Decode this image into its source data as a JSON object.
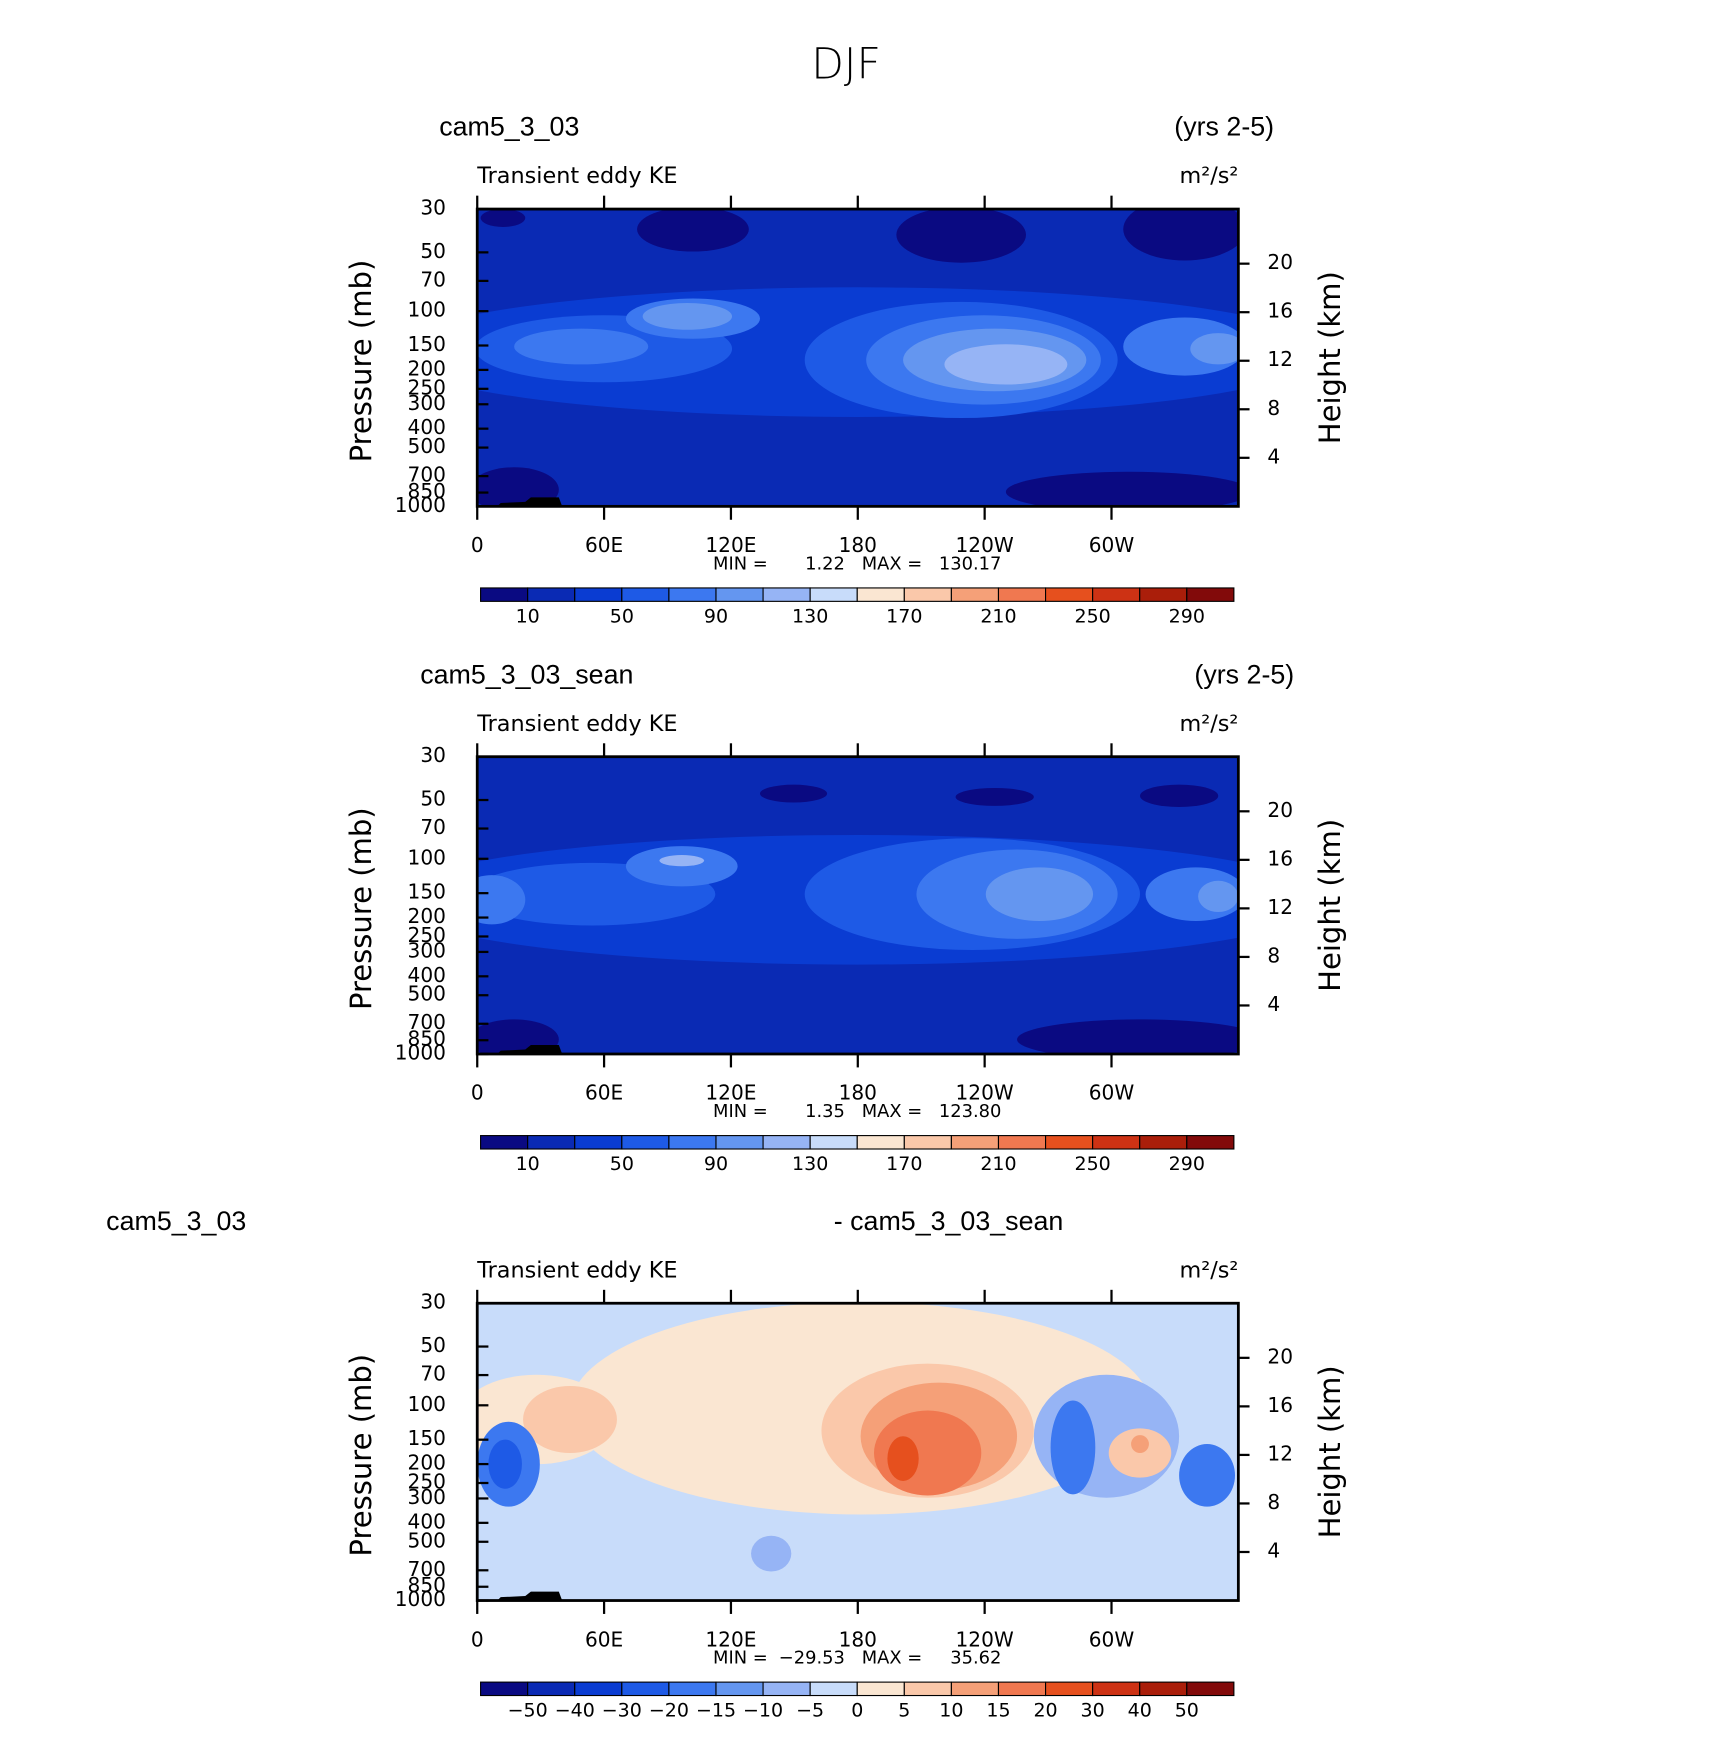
{
  "title": "DJF",
  "chart_data": [
    {
      "type": "contour",
      "title_left": "cam5_3_03",
      "title_right": "(yrs 2-5)",
      "subtitle": "Transient eddy KE",
      "units": "m²/s²",
      "ylabel": "Pressure (mb)",
      "y2label": "Height (km)",
      "log_y": true,
      "ylim": [
        1000,
        30
      ],
      "yticks": [
        30,
        50,
        70,
        100,
        150,
        200,
        250,
        300,
        400,
        500,
        700,
        850,
        1000
      ],
      "y2lim": [
        0,
        24.5
      ],
      "y2ticks": [
        4,
        8,
        12,
        16,
        20
      ],
      "xlim": [
        0,
        360
      ],
      "xticks": [
        0,
        {
          "value": 60,
          "label": "60E"
        },
        {
          "value": 120,
          "label": "120E"
        },
        180,
        {
          "value": 240,
          "label": "120W"
        },
        {
          "value": 300,
          "label": "60W"
        }
      ],
      "min_text": "MIN =",
      "min": 1.22,
      "max_text": "MAX =",
      "max": 130.17,
      "colorbar": {
        "ticks": [
          10,
          50,
          90,
          130,
          170,
          210,
          250,
          290
        ],
        "colors": [
          "#0a0a82",
          "#0a2ab4",
          "#0a3cd2",
          "#1e5ae6",
          "#3c78f0",
          "#6496f0",
          "#96b4f5",
          "#c8dcfa",
          "#fae6d2",
          "#fac8aa",
          "#f5a078",
          "#f07850",
          "#e6501e",
          "#cd3214",
          "#aa1e0a",
          "#820a0a"
        ]
      }
    },
    {
      "type": "contour",
      "title_left": "cam5_3_03_sean",
      "title_right": "(yrs 2-5)",
      "subtitle": "Transient eddy KE",
      "units": "m²/s²",
      "ylabel": "Pressure (mb)",
      "y2label": "Height (km)",
      "log_y": true,
      "ylim": [
        1000,
        30
      ],
      "yticks": [
        30,
        50,
        70,
        100,
        150,
        200,
        250,
        300,
        400,
        500,
        700,
        850,
        1000
      ],
      "y2lim": [
        0,
        24.5
      ],
      "y2ticks": [
        4,
        8,
        12,
        16,
        20
      ],
      "xlim": [
        0,
        360
      ],
      "xticks": [
        0,
        {
          "value": 60,
          "label": "60E"
        },
        {
          "value": 120,
          "label": "120E"
        },
        180,
        {
          "value": 240,
          "label": "120W"
        },
        {
          "value": 300,
          "label": "60W"
        }
      ],
      "min_text": "MIN =",
      "min": 1.35,
      "max_text": "MAX =",
      "max": {
        "value": 123.8,
        "label": "123.80"
      },
      "colorbar": {
        "ticks": [
          10,
          50,
          90,
          130,
          170,
          210,
          250,
          290
        ],
        "colors": [
          "#0a0a82",
          "#0a2ab4",
          "#0a3cd2",
          "#1e5ae6",
          "#3c78f0",
          "#6496f0",
          "#96b4f5",
          "#c8dcfa",
          "#fae6d2",
          "#fac8aa",
          "#f5a078",
          "#f07850",
          "#e6501e",
          "#cd3214",
          "#aa1e0a",
          "#820a0a"
        ]
      }
    },
    {
      "type": "contour",
      "title_left": "cam5_3_03",
      "title_right": "- cam5_3_03_sean",
      "subtitle": "Transient eddy KE",
      "units": "m²/s²",
      "ylabel": "Pressure (mb)",
      "y2label": "Height (km)",
      "log_y": true,
      "ylim": [
        1000,
        30
      ],
      "yticks": [
        30,
        50,
        70,
        100,
        150,
        200,
        250,
        300,
        400,
        500,
        700,
        850,
        1000
      ],
      "y2lim": [
        0,
        24.5
      ],
      "y2ticks": [
        4,
        8,
        12,
        16,
        20
      ],
      "xlim": [
        0,
        360
      ],
      "xticks": [
        0,
        {
          "value": 60,
          "label": "60E"
        },
        {
          "value": 120,
          "label": "120E"
        },
        180,
        {
          "value": 240,
          "label": "120W"
        },
        {
          "value": 300,
          "label": "60W"
        }
      ],
      "min_text": "MIN =",
      "min": {
        "value": -29.53,
        "label": "−29.53"
      },
      "max_text": "MAX =",
      "max": 35.62,
      "colorbar": {
        "ticks": [
          {
            "value": -50,
            "label": "−50"
          },
          {
            "value": -40,
            "label": "−40"
          },
          {
            "value": -30,
            "label": "−30"
          },
          {
            "value": -20,
            "label": "−20"
          },
          {
            "value": -15,
            "label": "−15"
          },
          {
            "value": -10,
            "label": "−10"
          },
          {
            "value": -5,
            "label": "−5"
          },
          0,
          5,
          10,
          15,
          20,
          30,
          40,
          50
        ],
        "colors": [
          "#0a0a82",
          "#0a2ab4",
          "#0a3cd2",
          "#1e5ae6",
          "#3c78f0",
          "#6496f0",
          "#96b4f5",
          "#c8dcfa",
          "#fae6d2",
          "#fac8aa",
          "#f5a078",
          "#f07850",
          "#e6501e",
          "#cd3214",
          "#aa1e0a",
          "#820a0a"
        ]
      }
    }
  ]
}
